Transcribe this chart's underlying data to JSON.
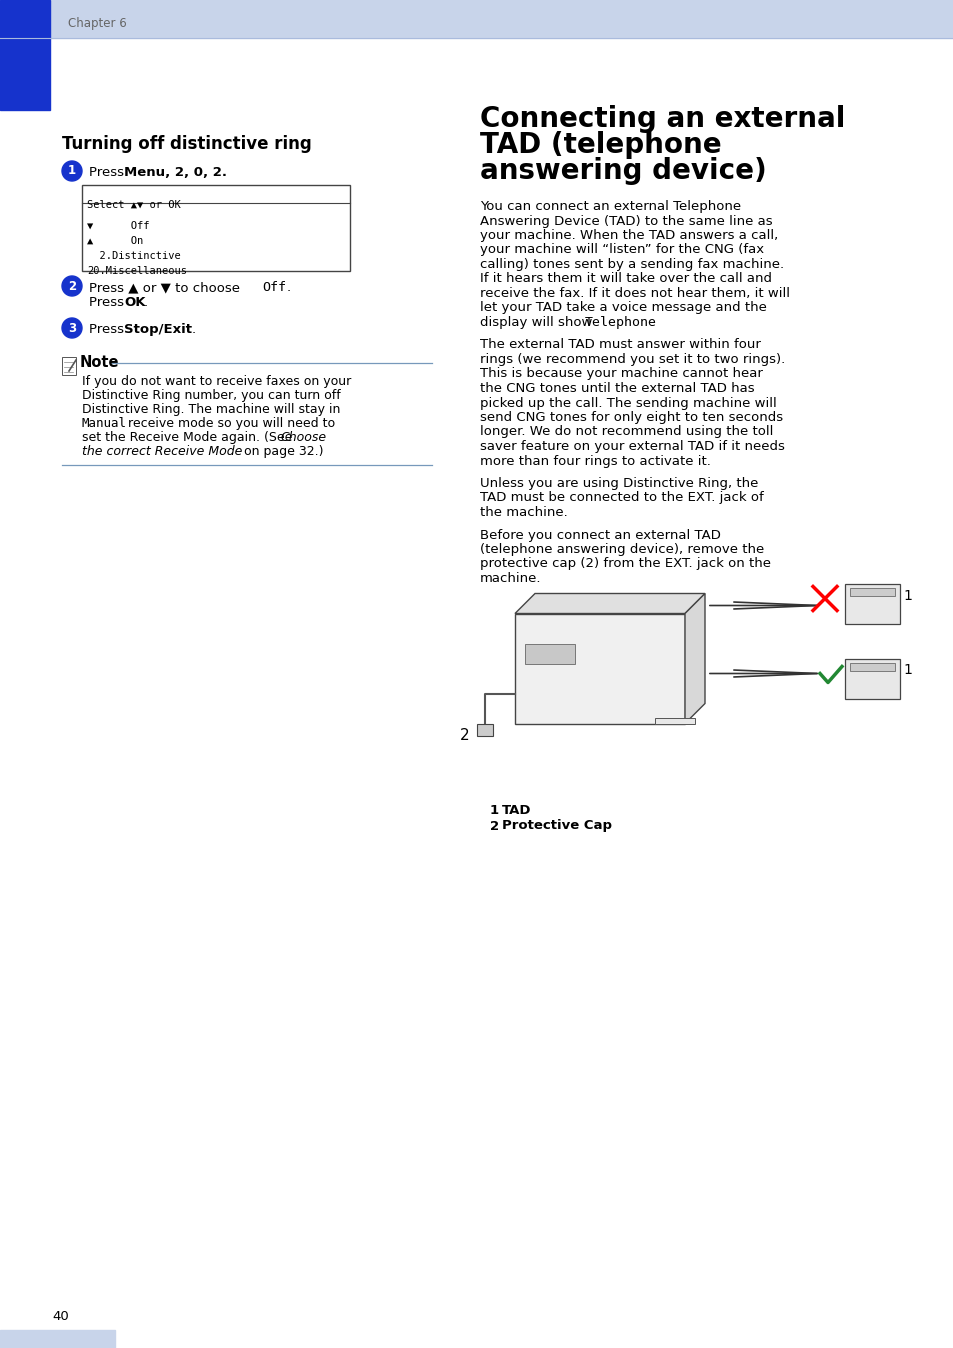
{
  "page_bg": "#ffffff",
  "header_bg": "#c8d4ea",
  "blue_bar_color": "#1633cc",
  "chapter_text": "Chapter 6",
  "left_title": "Turning off distinctive ring",
  "lcd_lines": [
    "20.Miscellaneous",
    "  2.Distinctive",
    "▲      On",
    "▼      Off",
    "Select ▲▼ or OK"
  ],
  "right_title_line1": "Connecting an external",
  "right_title_line2": "TAD (telephone",
  "right_title_line3": "answering device)",
  "para1_lines": [
    "You can connect an external Telephone",
    "Answering Device (TAD) to the same line as",
    "your machine. When the TAD answers a call,",
    "your machine will “listen” for the CNG (fax",
    "calling) tones sent by a sending fax machine.",
    "If it hears them it will take over the call and",
    "receive the fax. If it does not hear them, it will",
    "let your TAD take a voice message and the"
  ],
  "para1_last_normal": "display will show ",
  "para1_last_mono": "Telephone",
  "para1_last_end": ".",
  "para2_lines": [
    "The external TAD must answer within four",
    "rings (we recommend you set it to two rings).",
    "This is because your machine cannot hear",
    "the CNG tones until the external TAD has",
    "picked up the call. The sending machine will",
    "send CNG tones for only eight to ten seconds",
    "longer. We do not recommend using the toll",
    "saver feature on your external TAD if it needs",
    "more than four rings to activate it."
  ],
  "para3_lines": [
    "Unless you are using Distinctive Ring, the",
    "TAD must be connected to the EXT. jack of",
    "the machine."
  ],
  "para4_lines": [
    "Before you connect an external TAD",
    "(telephone answering device), remove the",
    "protective cap (2) from the EXT. jack on the",
    "machine."
  ],
  "note_text_lines": [
    "If you do not want to receive faxes on your",
    "Distinctive Ring number, you can turn off",
    "Distinctive Ring. The machine will stay in"
  ],
  "note_line4_mono": "Manual",
  "note_line4_rest": " receive mode so you will need to",
  "note_line5_pre": "set the Receive Mode again. (See ",
  "note_line5_italic": "Choose",
  "note_line6_italic": "the correct Receive Mode",
  "note_line6_rest": " on page 32.)",
  "fig_label1": "1",
  "fig_label2": "2",
  "fig_cap1": "TAD",
  "fig_cap2": "Protective Cap",
  "page_number": "40",
  "text_color": "#000000",
  "gray_text": "#666666",
  "blue_color": "#1633cc",
  "note_line_color": "#7799bb",
  "lcd_border": "#444444"
}
